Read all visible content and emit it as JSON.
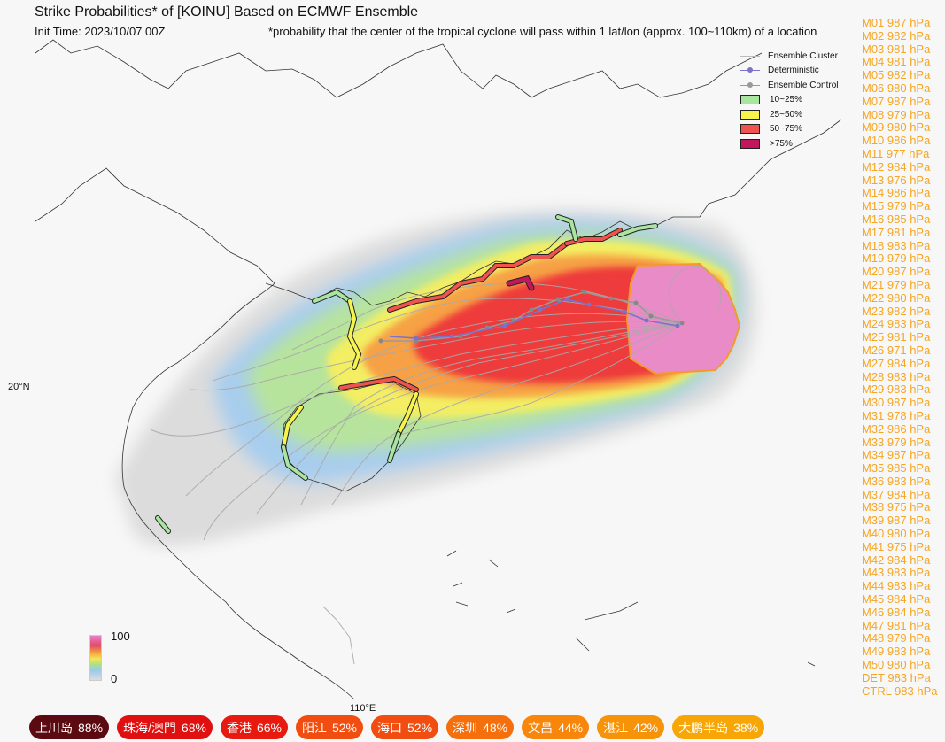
{
  "title": "Strike Probabilities* of [KOINU] Based on ECMWF Ensemble",
  "init_time": "Init Time: 2023/10/07 00Z",
  "footnote": "*probability that the center of the tropical cyclone will pass within 1 lat/lon (approx. 100~110km) of a location",
  "legend": {
    "items": [
      {
        "label": "Ensemble Cluster"
      },
      {
        "label": "Deterministic",
        "color": "#7b72c9"
      },
      {
        "label": "Ensemble Control",
        "color": "#999999"
      },
      {
        "label": "10~25%",
        "color": "#a8e6a0"
      },
      {
        "label": "25~50%",
        "color": "#f6f24e"
      },
      {
        "label": "50~75%",
        "color": "#ef5350"
      },
      {
        "label": ">75%",
        "color": "#c2185b"
      }
    ]
  },
  "colorbar": {
    "max_label": "100",
    "min_label": "0"
  },
  "axes": {
    "lat_label": "20°N",
    "lon_label": "110°E"
  },
  "members": [
    "M01 987 hPa",
    "M02 982 hPa",
    "M03 981 hPa",
    "M04 981 hPa",
    "M05 982 hPa",
    "M06 980 hPa",
    "M07 987 hPa",
    "M08 979 hPa",
    "M09 980 hPa",
    "M10 986 hPa",
    "M11 977 hPa",
    "M12 984 hPa",
    "M13 976 hPa",
    "M14 986 hPa",
    "M15 979 hPa",
    "M16 985 hPa",
    "M17 981 hPa",
    "M18 983 hPa",
    "M19 979 hPa",
    "M20 987 hPa",
    "M21 979 hPa",
    "M22 980 hPa",
    "M23 982 hPa",
    "M24 983 hPa",
    "M25 981 hPa",
    "M26 971 hPa",
    "M27 984 hPa",
    "M28 983 hPa",
    "M29 983 hPa",
    "M30 987 hPa",
    "M31 978 hPa",
    "M32 986 hPa",
    "M33 979 hPa",
    "M34 987 hPa",
    "M35 985 hPa",
    "M36 983 hPa",
    "M37 984 hPa",
    "M38 975 hPa",
    "M39 987 hPa",
    "M40 980 hPa",
    "M41 975 hPa",
    "M42 984 hPa",
    "M43 983 hPa",
    "M44 983 hPa",
    "M45 984 hPa",
    "M46 984 hPa",
    "M47 981 hPa",
    "M48 979 hPa",
    "M49 983 hPa",
    "M50 980 hPa",
    "DET 983 hPa",
    "CTRL 983 hPa"
  ],
  "locations": [
    {
      "name": "上川岛",
      "prob": "88%",
      "color": "#5a0a10"
    },
    {
      "name": "珠海/澳門",
      "prob": "68%",
      "color": "#e01010"
    },
    {
      "name": "香港",
      "prob": "66%",
      "color": "#e81a10"
    },
    {
      "name": "阳江",
      "prob": "52%",
      "color": "#f24d10"
    },
    {
      "name": "海口",
      "prob": "52%",
      "color": "#f24d10"
    },
    {
      "name": "深圳",
      "prob": "48%",
      "color": "#f5700c"
    },
    {
      "name": "文昌",
      "prob": "44%",
      "color": "#f7860a"
    },
    {
      "name": "湛江",
      "prob": "42%",
      "color": "#f79308"
    },
    {
      "name": "大鹏半岛",
      "prob": "38%",
      "color": "#f7a605"
    }
  ]
}
